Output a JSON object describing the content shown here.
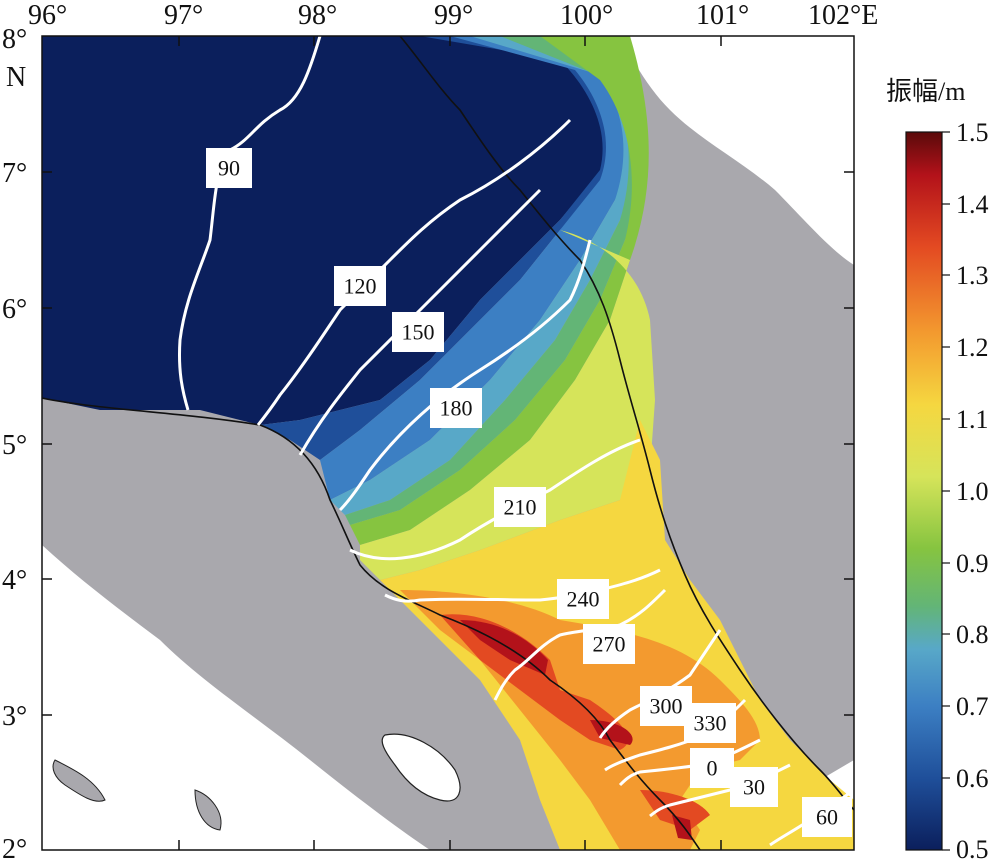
{
  "map": {
    "lon_labels": [
      "96°",
      "97°",
      "98°",
      "99°",
      "100°",
      "101°",
      "102°E"
    ],
    "lat_labels": [
      "8°",
      "N",
      "7°",
      "6°",
      "5°",
      "4°",
      "3°",
      "2°"
    ],
    "contour_labels": [
      "90",
      "120",
      "150",
      "180",
      "210",
      "240",
      "270",
      "300",
      "330",
      "0",
      "30",
      "60"
    ]
  },
  "colorbar": {
    "title": "振幅/m",
    "ticks": [
      "1.5",
      "1.4",
      "1.3",
      "1.2",
      "1.1",
      "1.0",
      "0.9",
      "0.8",
      "0.7",
      "0.6",
      "0.5"
    ],
    "colors": [
      "#0b1f5c",
      "#1f4f9a",
      "#3c7fc3",
      "#58a8c8",
      "#63b576",
      "#86c440",
      "#d6e45a",
      "#f5d740",
      "#f39a2f",
      "#e34a22",
      "#b3121a",
      "#5b0a0a"
    ]
  }
}
